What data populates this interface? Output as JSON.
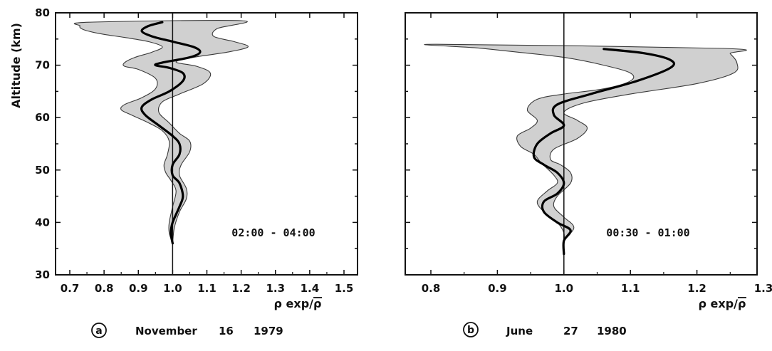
{
  "chart_data": [
    {
      "type": "line",
      "panel": "a",
      "caption": {
        "letter": "a",
        "month": "November",
        "day": "16",
        "year": "1979"
      },
      "time_range": "02:00 - 04:00",
      "xlabel": "ρ exp/ρ",
      "xlabel_overbar_on": "ρ",
      "ylabel": "Altitude (km)",
      "xlim": [
        0.65,
        1.5
      ],
      "ylim": [
        30,
        80
      ],
      "x_ticks": [
        "0.7",
        "0.8",
        "0.9",
        "1.0",
        "1.1",
        "1.2",
        "1.3",
        "1.4",
        "1.5"
      ],
      "y_ticks": [
        "30",
        "40",
        "50",
        "60",
        "70",
        "80"
      ],
      "reference_line_x": 1.0,
      "series": [
        {
          "role": "mean",
          "points": [
            [
              1.0,
              36.0
            ],
            [
              0.995,
              38.0
            ],
            [
              1.0,
              40.0
            ],
            [
              1.02,
              43.0
            ],
            [
              1.03,
              45.0
            ],
            [
              1.02,
              47.5
            ],
            [
              1.0,
              49.0
            ],
            [
              1.0,
              51.0
            ],
            [
              1.02,
              53.0
            ],
            [
              1.02,
              55.0
            ],
            [
              1.0,
              56.5
            ],
            [
              0.96,
              58.5
            ],
            [
              0.92,
              60.5
            ],
            [
              0.91,
              62.0
            ],
            [
              0.94,
              63.5
            ],
            [
              0.99,
              65.0
            ],
            [
              1.03,
              67.0
            ],
            [
              1.03,
              68.5
            ],
            [
              0.99,
              69.5
            ],
            [
              0.95,
              70.0
            ],
            [
              0.97,
              70.5
            ],
            [
              1.05,
              71.5
            ],
            [
              1.08,
              72.5
            ],
            [
              1.06,
              73.5
            ],
            [
              1.0,
              74.5
            ],
            [
              0.94,
              75.5
            ],
            [
              0.91,
              76.5
            ],
            [
              0.93,
              77.5
            ],
            [
              0.97,
              78.2
            ]
          ]
        }
      ],
      "band": {
        "upper": [
          [
            1.0,
            36.0
          ],
          [
            1.005,
            39.0
          ],
          [
            1.02,
            42.0
          ],
          [
            1.04,
            44.5
          ],
          [
            1.04,
            46.5
          ],
          [
            1.02,
            49.0
          ],
          [
            1.025,
            51.0
          ],
          [
            1.05,
            53.5
          ],
          [
            1.05,
            55.5
          ],
          [
            1.02,
            57.0
          ],
          [
            0.99,
            59.0
          ],
          [
            0.96,
            61.0
          ],
          [
            0.97,
            63.0
          ],
          [
            1.02,
            64.5
          ],
          [
            1.09,
            66.5
          ],
          [
            1.11,
            68.5
          ],
          [
            1.07,
            69.8
          ],
          [
            1.01,
            70.6
          ],
          [
            1.06,
            71.5
          ],
          [
            1.16,
            72.5
          ],
          [
            1.22,
            73.5
          ],
          [
            1.18,
            74.5
          ],
          [
            1.12,
            75.5
          ],
          [
            1.13,
            77.0
          ],
          [
            1.2,
            78.5
          ]
        ],
        "lower": [
          [
            0.755,
            78.2
          ],
          [
            0.73,
            77.5
          ],
          [
            0.74,
            76.8
          ],
          [
            0.79,
            76.0
          ],
          [
            0.86,
            75.3
          ],
          [
            0.93,
            74.5
          ],
          [
            0.97,
            73.5
          ],
          [
            0.94,
            72.5
          ],
          [
            0.89,
            71.5
          ],
          [
            0.86,
            70.5
          ],
          [
            0.86,
            69.8
          ],
          [
            0.9,
            69.2
          ],
          [
            0.95,
            67.5
          ],
          [
            0.95,
            65.5
          ],
          [
            0.91,
            63.8
          ],
          [
            0.86,
            62.5
          ],
          [
            0.85,
            61.5
          ],
          [
            0.88,
            60.5
          ],
          [
            0.93,
            59.0
          ],
          [
            0.97,
            57.5
          ],
          [
            0.99,
            55.5
          ],
          [
            0.985,
            53.0
          ],
          [
            0.975,
            51.0
          ],
          [
            0.98,
            49.5
          ],
          [
            0.995,
            48.0
          ],
          [
            1.01,
            46.0
          ],
          [
            1.0,
            43.0
          ],
          [
            0.99,
            40.0
          ],
          [
            0.99,
            38.0
          ],
          [
            1.0,
            36.0
          ]
        ]
      }
    },
    {
      "type": "line",
      "panel": "b",
      "caption": {
        "letter": "b",
        "month": "June",
        "day": "27",
        "year": "1980"
      },
      "time_range": "00:30 - 01:00",
      "xlabel": "ρ exp/ρ",
      "xlabel_overbar_on": "ρ",
      "ylabel": "",
      "xlim": [
        0.75,
        1.3
      ],
      "ylim": [
        30,
        80
      ],
      "x_ticks": [
        "0.8",
        "0.9",
        "1.0",
        "1.1",
        "1.2",
        "1.3"
      ],
      "y_ticks": [],
      "reference_line_x": 1.0,
      "series": [
        {
          "role": "mean",
          "points": [
            [
              1.0,
              34.0
            ],
            [
              1.0,
              36.5
            ],
            [
              1.01,
              38.5
            ],
            [
              0.99,
              40.0
            ],
            [
              0.97,
              42.0
            ],
            [
              0.97,
              44.0
            ],
            [
              0.99,
              45.5
            ],
            [
              1.0,
              47.5
            ],
            [
              0.99,
              49.5
            ],
            [
              0.97,
              51.0
            ],
            [
              0.955,
              52.5
            ],
            [
              0.96,
              55.0
            ],
            [
              0.98,
              57.0
            ],
            [
              1.0,
              58.5
            ],
            [
              0.985,
              60.5
            ],
            [
              0.99,
              62.5
            ],
            [
              1.04,
              64.5
            ],
            [
              1.11,
              67.0
            ],
            [
              1.16,
              69.5
            ],
            [
              1.16,
              71.0
            ],
            [
              1.12,
              72.3
            ],
            [
              1.06,
              73.1
            ]
          ]
        }
      ],
      "band": {
        "upper": [
          [
            1.0,
            34.0
          ],
          [
            1.0,
            36.5
          ],
          [
            1.015,
            39.0
          ],
          [
            1.0,
            41.0
          ],
          [
            0.985,
            43.0
          ],
          [
            0.99,
            45.0
          ],
          [
            1.01,
            47.5
          ],
          [
            1.01,
            49.5
          ],
          [
            0.995,
            51.0
          ],
          [
            0.98,
            52.0
          ],
          [
            0.985,
            54.0
          ],
          [
            1.02,
            56.0
          ],
          [
            1.035,
            58.0
          ],
          [
            1.02,
            59.5
          ],
          [
            1.0,
            61.0
          ],
          [
            1.03,
            62.8
          ],
          [
            1.1,
            64.5
          ],
          [
            1.2,
            66.5
          ],
          [
            1.255,
            68.5
          ],
          [
            1.26,
            70.5
          ],
          [
            1.25,
            72.2
          ],
          [
            1.24,
            73.2
          ]
        ],
        "lower": [
          [
            0.81,
            74.0
          ],
          [
            0.87,
            73.3
          ],
          [
            0.93,
            72.5
          ],
          [
            1.0,
            71.5
          ],
          [
            1.06,
            70.0
          ],
          [
            1.1,
            68.5
          ],
          [
            1.1,
            67.0
          ],
          [
            1.06,
            65.5
          ],
          [
            1.0,
            64.5
          ],
          [
            0.96,
            63.5
          ],
          [
            0.945,
            61.5
          ],
          [
            0.96,
            59.5
          ],
          [
            0.95,
            58.0
          ],
          [
            0.93,
            56.5
          ],
          [
            0.935,
            54.5
          ],
          [
            0.955,
            53.0
          ],
          [
            0.965,
            51.5
          ],
          [
            0.985,
            49.0
          ],
          [
            0.99,
            47.5
          ],
          [
            0.975,
            46.0
          ],
          [
            0.96,
            44.0
          ],
          [
            0.97,
            42.0
          ],
          [
            0.99,
            40.0
          ],
          [
            1.0,
            38.0
          ],
          [
            1.0,
            36.0
          ],
          [
            1.0,
            34.0
          ]
        ]
      }
    }
  ]
}
